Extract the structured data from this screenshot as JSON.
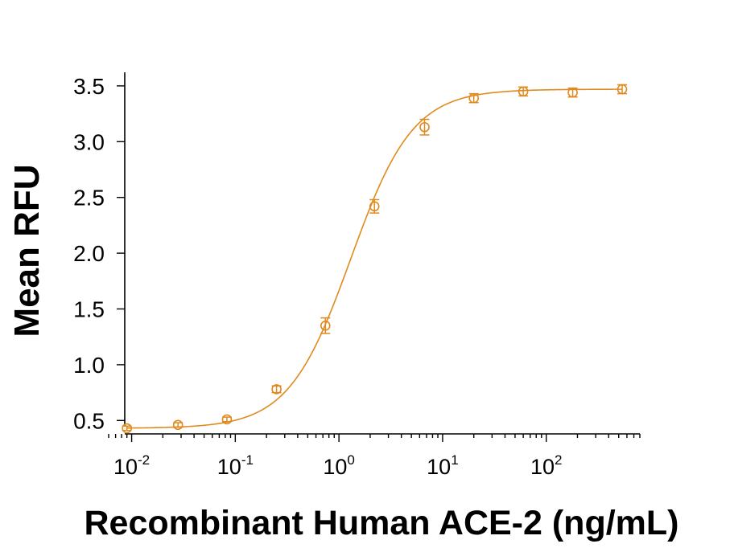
{
  "chart_data": {
    "type": "scatter",
    "xlabel": "Recombinant Human ACE-2 (ng/mL)",
    "ylabel": "Mean RFU",
    "x_scale": "log",
    "xlim": [
      0.006,
      800
    ],
    "ylim": [
      0.25,
      3.6
    ],
    "y_ticks": [
      0.5,
      1.0,
      1.5,
      2.0,
      2.5,
      3.0,
      3.5
    ],
    "y_tick_labels": [
      "0.5",
      "1.0",
      "1.5",
      "2.0",
      "2.5",
      "3.0",
      "3.5"
    ],
    "x_ticks": [
      {
        "value": 0.01,
        "base": "10",
        "exp": "-2"
      },
      {
        "value": 0.1,
        "base": "10",
        "exp": "-1"
      },
      {
        "value": 1,
        "base": "10",
        "exp": "0"
      },
      {
        "value": 10,
        "base": "10",
        "exp": "1"
      },
      {
        "value": 100,
        "base": "10",
        "exp": "2"
      }
    ],
    "grid": false,
    "color": "#E08A1E",
    "series": [
      {
        "marker": "open-circle",
        "points": [
          {
            "x": 0.009,
            "y": 0.43,
            "err": 0.02
          },
          {
            "x": 0.028,
            "y": 0.46,
            "err": 0.02
          },
          {
            "x": 0.083,
            "y": 0.51,
            "err": 0.02
          },
          {
            "x": 0.25,
            "y": 0.78,
            "err": 0.03
          },
          {
            "x": 0.74,
            "y": 1.35,
            "err": 0.07
          },
          {
            "x": 2.2,
            "y": 2.42,
            "err": 0.06
          },
          {
            "x": 6.7,
            "y": 3.13,
            "err": 0.07
          },
          {
            "x": 20,
            "y": 3.39,
            "err": 0.04
          },
          {
            "x": 60,
            "y": 3.45,
            "err": 0.04
          },
          {
            "x": 180,
            "y": 3.44,
            "err": 0.04
          },
          {
            "x": 540,
            "y": 3.47,
            "err": 0.04
          }
        ]
      }
    ],
    "fit": {
      "type": "4PL",
      "bottom": 0.43,
      "top": 3.47,
      "ec50": 1.3,
      "hill": 1.45
    }
  }
}
